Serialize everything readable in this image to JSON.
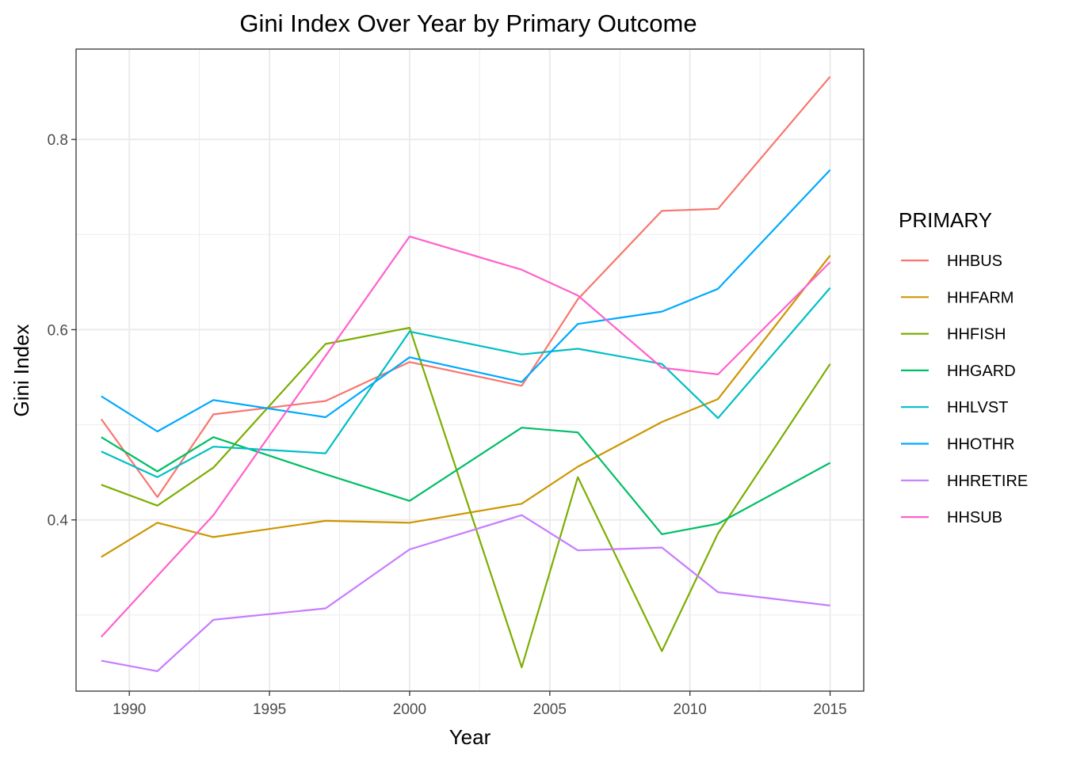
{
  "chart_data": {
    "type": "line",
    "title": "Gini Index Over Year by Primary Outcome",
    "xlabel": "Year",
    "ylabel": "Gini Index",
    "xlim": [
      1988.1,
      2016.2
    ],
    "ylim": [
      0.22,
      0.895
    ],
    "x_ticks": [
      1990,
      1995,
      2000,
      2005,
      2010,
      2015
    ],
    "x_minor_ticks": [
      1992.5,
      1997.5,
      2002.5,
      2007.5,
      2012.5
    ],
    "y_ticks": [
      0.4,
      0.6,
      0.8
    ],
    "y_tick_labels": [
      "0.4",
      "0.6",
      "0.8"
    ],
    "y_minor_ticks": [
      0.3,
      0.5,
      0.7
    ],
    "grid": true,
    "legend": {
      "title": "PRIMARY",
      "position": "right"
    },
    "series": [
      {
        "name": "HHBUS",
        "color": "#F8766D",
        "points": [
          [
            1989,
            0.506
          ],
          [
            1991,
            0.424
          ],
          [
            1993,
            0.511
          ],
          [
            1997,
            0.525
          ],
          [
            2000,
            0.566
          ],
          [
            2004,
            0.541
          ],
          [
            2006,
            0.632
          ],
          [
            2009,
            0.725
          ],
          [
            2011,
            0.727
          ],
          [
            2015,
            0.866
          ]
        ]
      },
      {
        "name": "HHFARM",
        "color": "#CD9600",
        "points": [
          [
            1989,
            0.361
          ],
          [
            1991,
            0.397
          ],
          [
            1993,
            0.382
          ],
          [
            1997,
            0.399
          ],
          [
            2000,
            0.397
          ],
          [
            2004,
            0.417
          ],
          [
            2006,
            0.456
          ],
          [
            2009,
            0.503
          ],
          [
            2011,
            0.527
          ],
          [
            2015,
            0.678
          ]
        ]
      },
      {
        "name": "HHFISH",
        "color": "#7CAE00",
        "points": [
          [
            1989,
            0.437
          ],
          [
            1991,
            0.415
          ],
          [
            1993,
            0.455
          ],
          [
            1997,
            0.585
          ],
          [
            2000,
            0.602
          ],
          [
            2004,
            0.245
          ],
          [
            2006,
            0.445
          ],
          [
            2009,
            0.262
          ],
          [
            2011,
            0.386
          ],
          [
            2015,
            0.564
          ]
        ]
      },
      {
        "name": "HHGARD",
        "color": "#00BE67",
        "points": [
          [
            1989,
            0.487
          ],
          [
            1991,
            0.451
          ],
          [
            1993,
            0.487
          ],
          [
            1997,
            0.448
          ],
          [
            2000,
            0.42
          ],
          [
            2004,
            0.497
          ],
          [
            2006,
            0.492
          ],
          [
            2009,
            0.385
          ],
          [
            2011,
            0.396
          ],
          [
            2015,
            0.46
          ]
        ]
      },
      {
        "name": "HHLVST",
        "color": "#00BFC4",
        "points": [
          [
            1989,
            0.472
          ],
          [
            1991,
            0.445
          ],
          [
            1993,
            0.477
          ],
          [
            1997,
            0.47
          ],
          [
            2000,
            0.598
          ],
          [
            2004,
            0.574
          ],
          [
            2006,
            0.58
          ],
          [
            2009,
            0.564
          ],
          [
            2011,
            0.507
          ],
          [
            2015,
            0.644
          ]
        ]
      },
      {
        "name": "HHOTHR",
        "color": "#00A9FF",
        "points": [
          [
            1989,
            0.53
          ],
          [
            1991,
            0.493
          ],
          [
            1993,
            0.526
          ],
          [
            1997,
            0.508
          ],
          [
            2000,
            0.571
          ],
          [
            2004,
            0.545
          ],
          [
            2006,
            0.606
          ],
          [
            2009,
            0.619
          ],
          [
            2011,
            0.643
          ],
          [
            2015,
            0.768
          ]
        ]
      },
      {
        "name": "HHRETIRE",
        "color": "#C77CFF",
        "points": [
          [
            1989,
            0.252
          ],
          [
            1991,
            0.241
          ],
          [
            1993,
            0.295
          ],
          [
            1997,
            0.307
          ],
          [
            2000,
            0.369
          ],
          [
            2004,
            0.405
          ],
          [
            2006,
            0.368
          ],
          [
            2009,
            0.371
          ],
          [
            2011,
            0.324
          ],
          [
            2015,
            0.31
          ]
        ]
      },
      {
        "name": "HHSUB",
        "color": "#FF61CC",
        "points": [
          [
            1989,
            0.277
          ],
          [
            1993,
            0.405
          ],
          [
            2000,
            0.698
          ],
          [
            2004,
            0.663
          ],
          [
            2006,
            0.636
          ],
          [
            2009,
            0.56
          ],
          [
            2011,
            0.553
          ],
          [
            2015,
            0.671
          ]
        ]
      }
    ]
  }
}
